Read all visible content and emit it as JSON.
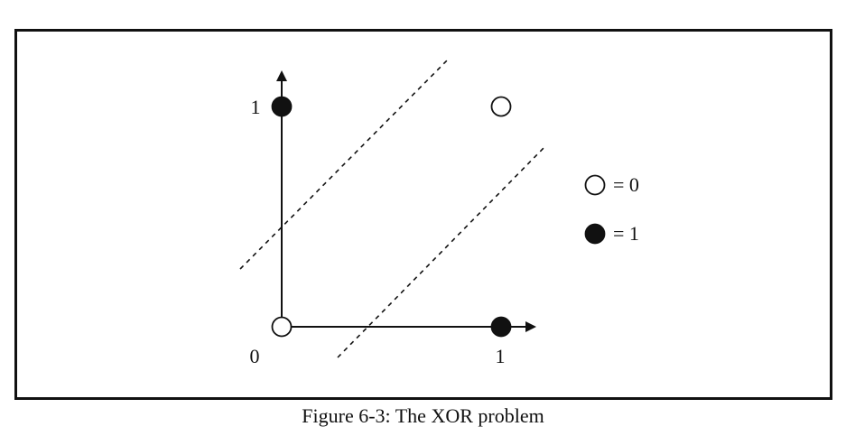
{
  "axis_labels": {
    "x_origin": "0",
    "x_one": "1",
    "y_one": "1"
  },
  "points": [
    {
      "name": "point-0-0",
      "x": 0,
      "y": 0,
      "class": 0
    },
    {
      "name": "point-1-0",
      "x": 1,
      "y": 0,
      "class": 1
    },
    {
      "name": "point-0-1",
      "x": 0,
      "y": 1,
      "class": 1
    },
    {
      "name": "point-1-1",
      "x": 1,
      "y": 1,
      "class": 0
    }
  ],
  "legend": {
    "open_label": "= 0",
    "filled_label": "= 1"
  },
  "caption": "Figure 6-3: The XOR problem",
  "colors": {
    "ink": "#111111",
    "background": "#ffffff"
  }
}
